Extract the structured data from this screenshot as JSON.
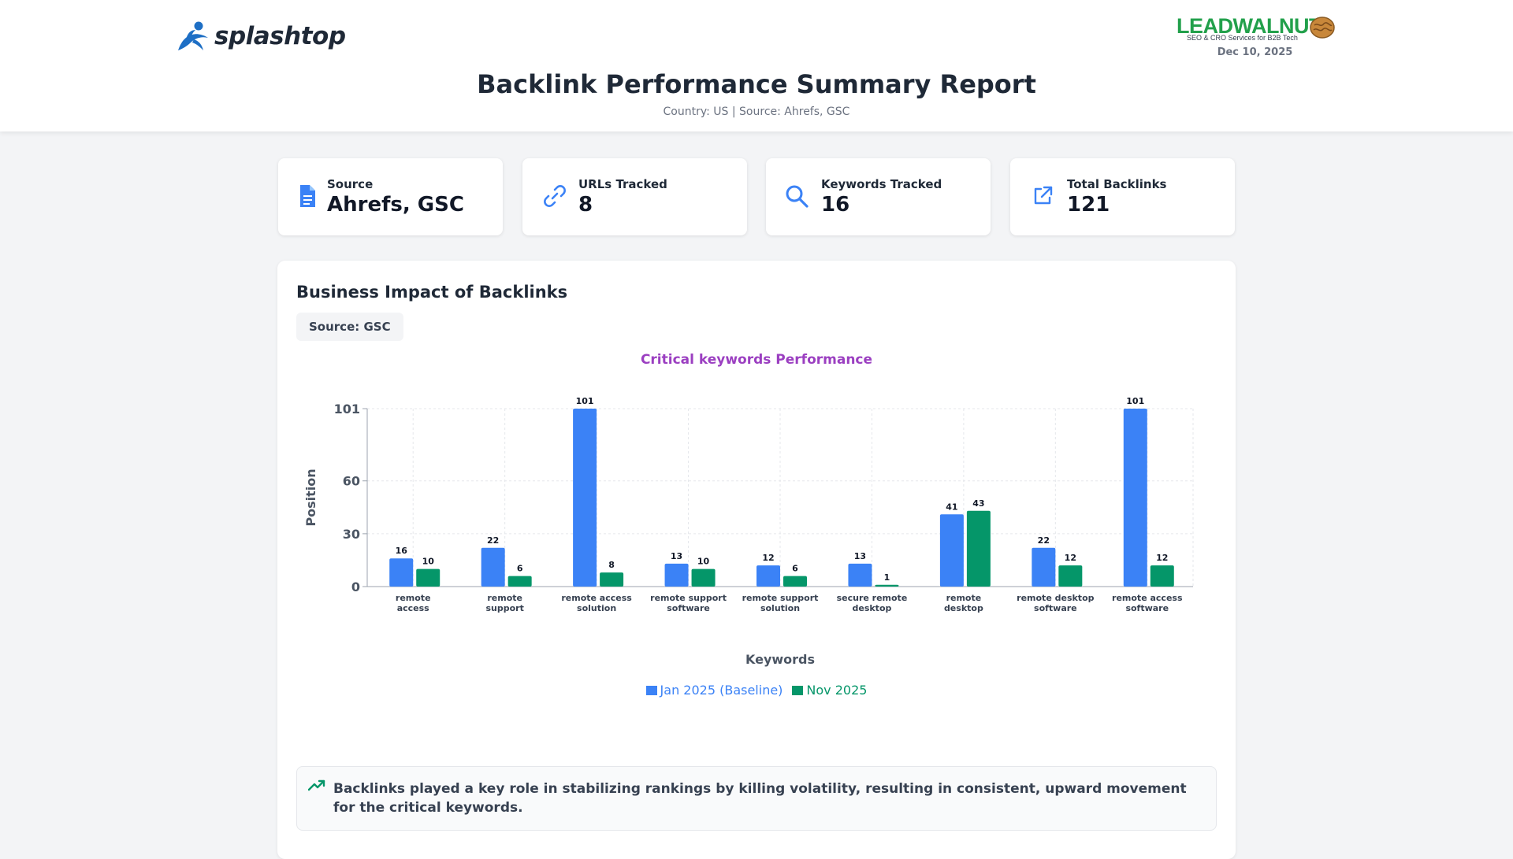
{
  "header": {
    "brand_left": "splashtop",
    "brand_right_name": "LEADWALNUT",
    "brand_right_tagline": "SEO & CRO Services for B2B Tech",
    "date": "Dec 10, 2025",
    "title": "Backlink Performance Summary Report",
    "subtitle": "Country: US | Source: Ahrefs, GSC"
  },
  "cards": [
    {
      "label": "Source",
      "value": "Ahrefs, GSC",
      "icon": "document-icon"
    },
    {
      "label": "URLs Tracked",
      "value": "8",
      "icon": "link-icon"
    },
    {
      "label": "Keywords Tracked",
      "value": "16",
      "icon": "search-icon"
    },
    {
      "label": "Total Backlinks",
      "value": "121",
      "icon": "external-link-icon"
    }
  ],
  "panel": {
    "title": "Business Impact of Backlinks",
    "source_chip": "Source: GSC",
    "insight": "Backlinks played a key role in stabilizing rankings by killing volatility, resulting in consistent, upward movement for the critical keywords."
  },
  "colors": {
    "series_baseline": "#3b82f6",
    "series_current": "#059669",
    "chart_title": "#9b3fc1",
    "insight_icon": "#059669"
  },
  "chart_data": {
    "type": "bar",
    "title": "Critical keywords Performance",
    "xlabel": "Keywords",
    "ylabel": "Position",
    "ylim": [
      0,
      101
    ],
    "yticks": [
      0,
      30,
      60,
      101
    ],
    "grid": true,
    "legend_position": "bottom-center",
    "categories": [
      [
        "remote",
        "access"
      ],
      [
        "remote",
        "support"
      ],
      [
        "remote access",
        "solution"
      ],
      [
        "remote support",
        "software"
      ],
      [
        "remote support",
        "solution"
      ],
      [
        "secure remote",
        "desktop"
      ],
      [
        "remote",
        "desktop"
      ],
      [
        "remote desktop",
        "software"
      ],
      [
        "remote access",
        "software"
      ]
    ],
    "series": [
      {
        "name": "Jan 2025 (Baseline)",
        "values": [
          16,
          22,
          101,
          13,
          12,
          13,
          41,
          22,
          101
        ]
      },
      {
        "name": "Nov 2025",
        "values": [
          10,
          6,
          8,
          10,
          6,
          1,
          43,
          12,
          12
        ]
      }
    ]
  }
}
